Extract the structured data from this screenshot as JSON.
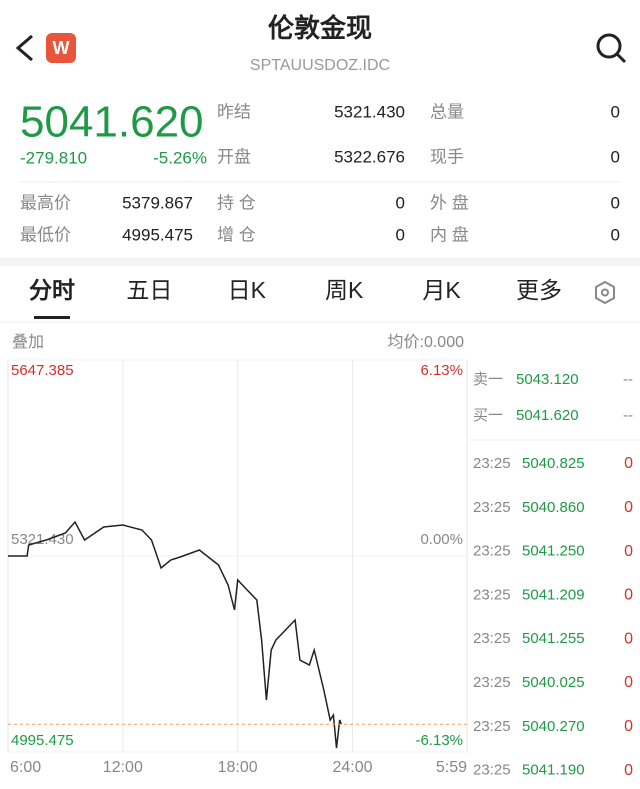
{
  "header": {
    "title": "伦敦金现",
    "subtitle": "SPTAUUSDOZ.IDC",
    "badge": "W"
  },
  "quote": {
    "price": "5041.620",
    "change": "-279.810",
    "change_pct": "-5.26%",
    "stats": [
      {
        "label": "昨结",
        "value": "5321.430"
      },
      {
        "label": "总量",
        "value": "0"
      },
      {
        "label": "开盘",
        "value": "5322.676"
      },
      {
        "label": "现手",
        "value": "0"
      },
      {
        "label": "最高价",
        "value": "5379.867"
      },
      {
        "label": "持 仓",
        "value": "0"
      },
      {
        "label": "外 盘",
        "value": "0"
      },
      {
        "label": "最低价",
        "value": "4995.475"
      },
      {
        "label": "增 仓",
        "value": "0"
      },
      {
        "label": "内 盘",
        "value": "0"
      }
    ]
  },
  "tabs": [
    "分时",
    "五日",
    "日K",
    "周K",
    "月K",
    "更多"
  ],
  "chart_data": {
    "type": "line",
    "overlay_label": "叠加",
    "avg_label": "均价:0.000",
    "x": [
      "6:00",
      "7:00",
      "7:05",
      "8:00",
      "9:00",
      "9:30",
      "10:00",
      "11:00",
      "12:00",
      "13:00",
      "13:30",
      "14:00",
      "14:30",
      "15:00",
      "16:00",
      "17:00",
      "17:30",
      "17:50",
      "18:00",
      "18:30",
      "19:00",
      "19:15",
      "19:30",
      "19:45",
      "20:00",
      "20:30",
      "21:00",
      "21:15",
      "21:45",
      "22:00",
      "22:30",
      "22:50",
      "23:00",
      "23:10",
      "23:20",
      "23:25"
    ],
    "series": [
      {
        "color": "#222222",
        "values": [
          5321.4,
          5321.4,
          5339.7,
          5348,
          5359.7,
          5378,
          5348,
          5369.7,
          5373,
          5364.7,
          5348,
          5301.5,
          5314.8,
          5319.8,
          5331.4,
          5306.5,
          5273.2,
          5231.6,
          5281.5,
          5264.9,
          5248.3,
          5181.7,
          5081.9,
          5165.1,
          5181.7,
          5198.4,
          5215,
          5148.5,
          5140.1,
          5165.1,
          5098.6,
          5048.7,
          5057,
          5002,
          5048.7,
          5041.6
        ]
      }
    ],
    "ylim": [
      4995.475,
      5647.385
    ],
    "yticks": [
      5647.385,
      {
        "value": 5321.43,
        "label": "5321.430"
      },
      4995.475
    ],
    "y2lim": [
      -6.13,
      6.13
    ],
    "y2ticks": [
      {
        "value": 6.13,
        "label": "6.13%"
      },
      {
        "value": 0,
        "label": "0.00%"
      },
      {
        "value": -6.13,
        "label": "-6.13%"
      }
    ],
    "xlim": [
      "6:00",
      "5:59"
    ],
    "xticks": [
      "6:00",
      "12:00",
      "18:00",
      "24:00",
      "5:59"
    ],
    "grid": true
  },
  "order_book": [
    {
      "label": "卖一",
      "price": "5043.120",
      "volume": "--"
    },
    {
      "label": "买一",
      "price": "5041.620",
      "volume": "--"
    }
  ],
  "trades": [
    {
      "time": "23:25",
      "price": "5040.825",
      "volume": "0"
    },
    {
      "time": "23:25",
      "price": "5040.860",
      "volume": "0"
    },
    {
      "time": "23:25",
      "price": "5041.250",
      "volume": "0"
    },
    {
      "time": "23:25",
      "price": "5041.209",
      "volume": "0"
    },
    {
      "time": "23:25",
      "price": "5041.255",
      "volume": "0"
    },
    {
      "time": "23:25",
      "price": "5040.025",
      "volume": "0"
    },
    {
      "time": "23:25",
      "price": "5040.270",
      "volume": "0"
    },
    {
      "time": "23:25",
      "price": "5041.190",
      "volume": "0"
    }
  ]
}
